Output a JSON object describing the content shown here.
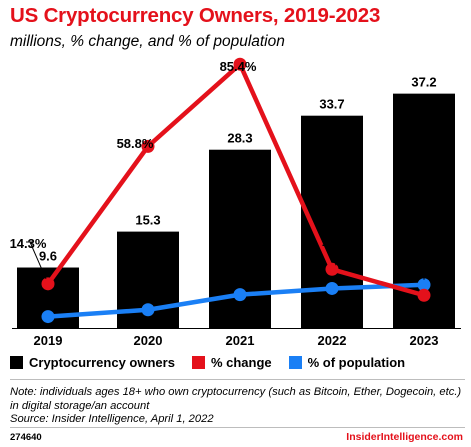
{
  "header": {
    "title": "US Cryptocurrency Owners, 2019-2023",
    "subtitle": "millions, % change, and % of population"
  },
  "chart_data": {
    "type": "bar",
    "categories": [
      "2019",
      "2020",
      "2021",
      "2022",
      "2023"
    ],
    "series": [
      {
        "name": "Cryptocurrency owners",
        "kind": "bar",
        "color": "#000000",
        "values": [
          9.6,
          15.3,
          28.3,
          33.7,
          37.2
        ],
        "labels": [
          "9.6",
          "15.3",
          "28.3",
          "33.7",
          "37.2"
        ]
      },
      {
        "name": "% change",
        "kind": "line",
        "color": "#e4111b",
        "values": [
          14.3,
          58.8,
          85.4,
          19.0,
          10.6
        ],
        "labels": [
          "14.3%",
          "58.8%",
          "85.4%",
          "19.0%",
          "10.6%"
        ]
      },
      {
        "name": "% of population",
        "kind": "line",
        "color": "#1a7ff5",
        "values": [
          3.7,
          5.9,
          10.8,
          12.8,
          14.0
        ],
        "labels": [
          "3.7%",
          "5.9%",
          "10.8%",
          "12.8%",
          "14.0%"
        ]
      }
    ],
    "bar_ylim": [
      0,
      40
    ],
    "line_ylim": [
      0,
      90
    ]
  },
  "legend": {
    "items": [
      {
        "label": "Cryptocurrency owners",
        "color": "#000000"
      },
      {
        "label": "% change",
        "color": "#e4111b"
      },
      {
        "label": "% of population",
        "color": "#1a7ff5"
      }
    ]
  },
  "footer": {
    "note": "Note: individuals ages 18+ who own cryptocurrency (such as Bitcoin, Ether, Dogecoin, etc.) in digital storage/an account",
    "source": "Source: Insider Intelligence, April 1, 2022",
    "id": "274640",
    "brand": "InsiderIntelligence.com"
  }
}
